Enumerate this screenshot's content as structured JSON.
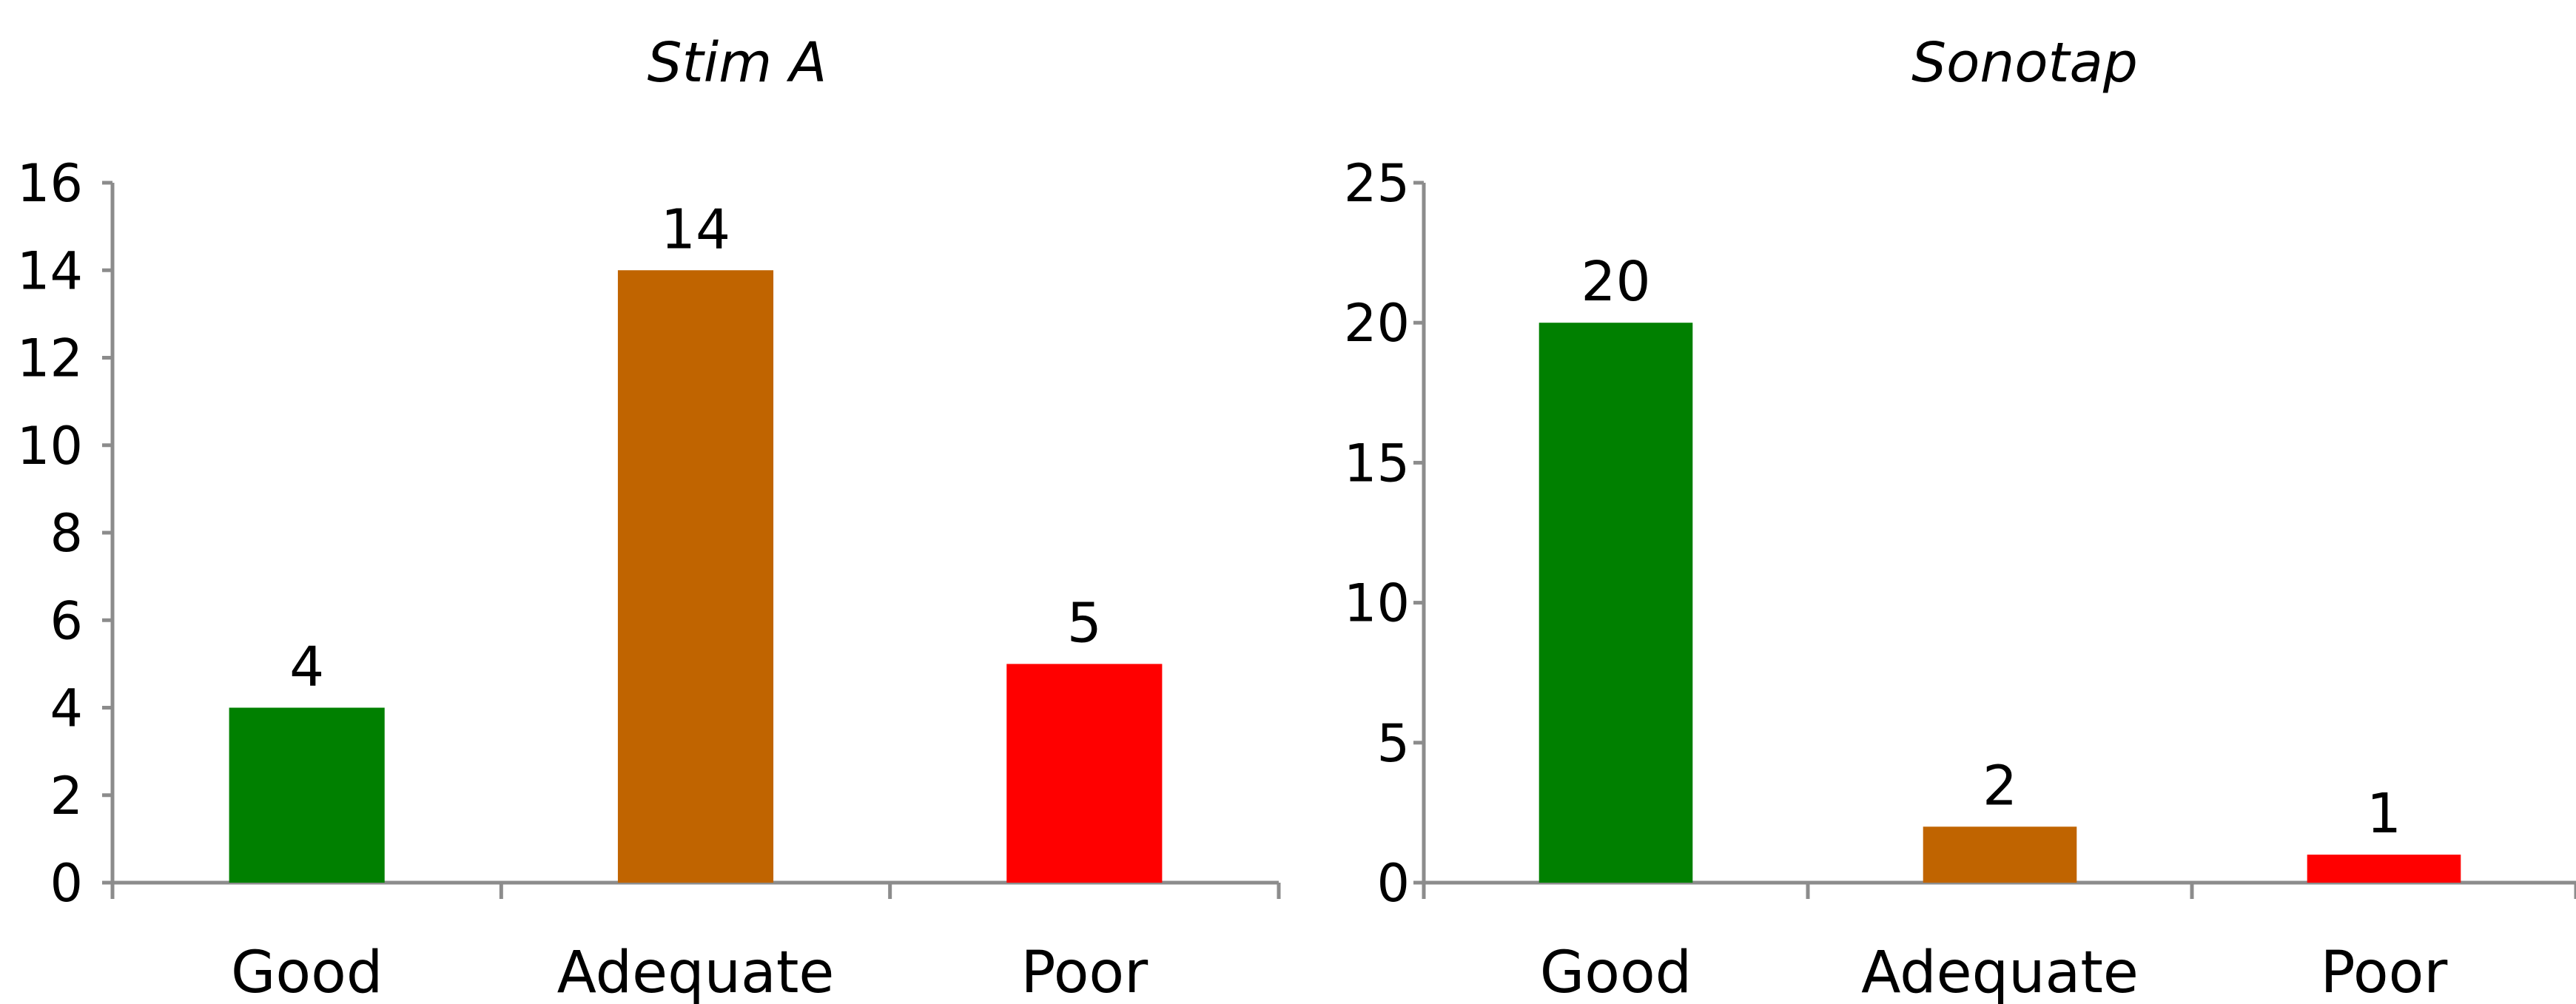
{
  "chart_data": [
    {
      "type": "bar",
      "title": "Stim A",
      "categories": [
        "Good",
        "Adequate",
        "Poor"
      ],
      "values": [
        4,
        14,
        5
      ],
      "colors": [
        "#008000",
        "#c06400",
        "#ff0000"
      ],
      "yticks": [
        0,
        2,
        4,
        6,
        8,
        10,
        12,
        14,
        16
      ],
      "ylim": [
        0,
        16
      ],
      "xlabel": "",
      "ylabel": "",
      "grid": false,
      "legend": false
    },
    {
      "type": "bar",
      "title": "Sonotap",
      "categories": [
        "Good",
        "Adequate",
        "Poor"
      ],
      "values": [
        20,
        2,
        1
      ],
      "colors": [
        "#008000",
        "#c06400",
        "#ff0000"
      ],
      "yticks": [
        0,
        5,
        10,
        15,
        20,
        25
      ],
      "ylim": [
        0,
        25
      ],
      "xlabel": "",
      "ylabel": "",
      "grid": false,
      "legend": false
    }
  ]
}
